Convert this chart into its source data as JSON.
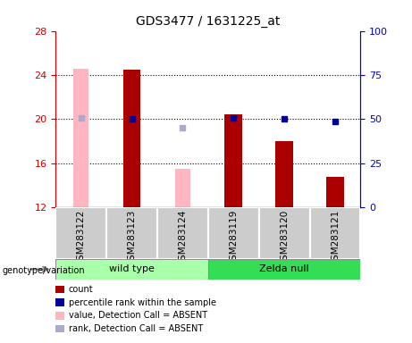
{
  "title": "GDS3477 / 1631225_at",
  "categories": [
    "GSM283122",
    "GSM283123",
    "GSM283124",
    "GSM283119",
    "GSM283120",
    "GSM283121"
  ],
  "ylim_left": [
    12,
    28
  ],
  "ylim_right": [
    0,
    100
  ],
  "yticks_left": [
    12,
    16,
    20,
    24,
    28
  ],
  "yticks_right": [
    0,
    25,
    50,
    75,
    100
  ],
  "red_bars": [
    null,
    24.5,
    null,
    20.4,
    18.0,
    14.8
  ],
  "pink_bars": [
    24.6,
    null,
    15.5,
    null,
    null,
    null
  ],
  "blue_squares_pct": [
    null,
    50.0,
    null,
    50.5,
    50.2,
    48.5
  ],
  "lightblue_squares_pct": [
    50.8,
    null,
    45.0,
    null,
    null,
    null
  ],
  "bar_width": 0.35,
  "red_color": "#AA0000",
  "pink_color": "#FFB6C1",
  "blue_color": "#000099",
  "lightblue_color": "#AAAACC",
  "grid_lines": [
    16,
    20,
    24
  ],
  "legend_items": [
    {
      "label": "count",
      "color": "#AA0000"
    },
    {
      "label": "percentile rank within the sample",
      "color": "#000099"
    },
    {
      "label": "value, Detection Call = ABSENT",
      "color": "#FFB6C1"
    },
    {
      "label": "rank, Detection Call = ABSENT",
      "color": "#AAAACC"
    }
  ],
  "genotype_label": "genotype/variation",
  "wt_color": "#AAFFAA",
  "zelda_color": "#33DD55",
  "sample_bg_color": "#CCCCCC",
  "axes_color_left": "#CC0000",
  "axes_color_right": "#0000CC"
}
